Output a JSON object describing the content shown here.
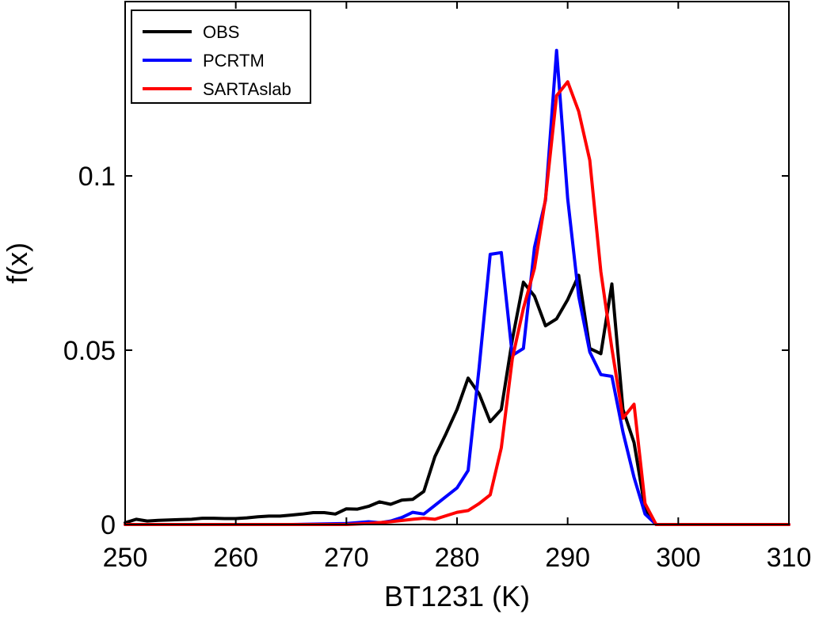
{
  "chart_data": {
    "type": "line",
    "title": "",
    "xlabel": "BT1231 (K)",
    "ylabel": "f(x)",
    "xlim": [
      250,
      310
    ],
    "ylim": [
      0,
      0.15
    ],
    "xticks": [
      250,
      260,
      270,
      280,
      290,
      300,
      310
    ],
    "xtick_labels": [
      "250",
      "260",
      "270",
      "280",
      "290",
      "300",
      "310"
    ],
    "yticks": [
      0,
      0.05,
      0.1
    ],
    "ytick_labels": [
      "0",
      "0.05",
      "0.1"
    ],
    "grid": false,
    "legend_position": "top-left",
    "series": [
      {
        "name": "OBS",
        "color": "#000000",
        "x": [
          250,
          251,
          252,
          253,
          254,
          255,
          256,
          257,
          258,
          259,
          260,
          261,
          262,
          263,
          264,
          265,
          266,
          267,
          268,
          269,
          270,
          271,
          272,
          273,
          274,
          275,
          276,
          277,
          278,
          279,
          280,
          281,
          282,
          283,
          284,
          285,
          286,
          287,
          288,
          289,
          290,
          291,
          292,
          293,
          294,
          295,
          296,
          297,
          298,
          299,
          300,
          305,
          310
        ],
        "y": [
          0.0005,
          0.0015,
          0.001,
          0.0012,
          0.0013,
          0.0014,
          0.0015,
          0.0018,
          0.0018,
          0.0017,
          0.0017,
          0.0019,
          0.0022,
          0.0024,
          0.0024,
          0.0027,
          0.003,
          0.0034,
          0.0034,
          0.003,
          0.0045,
          0.0044,
          0.0052,
          0.0065,
          0.0058,
          0.007,
          0.0072,
          0.0095,
          0.0195,
          0.026,
          0.033,
          0.042,
          0.0375,
          0.0295,
          0.033,
          0.053,
          0.0695,
          0.0655,
          0.057,
          0.059,
          0.0645,
          0.0715,
          0.0505,
          0.049,
          0.069,
          0.033,
          0.0235,
          0.0045,
          0.0,
          0.0,
          0.0,
          0.0,
          0.0
        ]
      },
      {
        "name": "PCRTM",
        "color": "#0000ff",
        "x": [
          250,
          255,
          260,
          265,
          270,
          272,
          273,
          274,
          275,
          276,
          277,
          278,
          279,
          280,
          281,
          282,
          283,
          284,
          285,
          286,
          287,
          288,
          289,
          290,
          291,
          292,
          293,
          294,
          295,
          296,
          297,
          298,
          299,
          300,
          305,
          310
        ],
        "y": [
          0.0,
          0.0,
          0.0,
          0.0,
          0.0003,
          0.0008,
          0.0005,
          0.001,
          0.002,
          0.0035,
          0.003,
          0.0055,
          0.008,
          0.0105,
          0.0155,
          0.045,
          0.0775,
          0.078,
          0.0485,
          0.0505,
          0.0795,
          0.093,
          0.136,
          0.0935,
          0.0655,
          0.0495,
          0.043,
          0.0425,
          0.0265,
          0.0135,
          0.003,
          0.0,
          0.0,
          0.0,
          0.0,
          0.0
        ]
      },
      {
        "name": "SARTAslab",
        "color": "#ff0000",
        "x": [
          250,
          255,
          260,
          265,
          270,
          272,
          274,
          276,
          277,
          278,
          279,
          280,
          281,
          282,
          283,
          284,
          285,
          286,
          287,
          288,
          289,
          290,
          291,
          292,
          293,
          294,
          295,
          296,
          297,
          298,
          299,
          300,
          305,
          310
        ],
        "y": [
          0.0,
          0.0,
          0.0,
          0.0,
          0.0,
          0.0003,
          0.0008,
          0.0015,
          0.0018,
          0.0015,
          0.0025,
          0.0035,
          0.004,
          0.006,
          0.0085,
          0.022,
          0.0475,
          0.062,
          0.0735,
          0.0935,
          0.123,
          0.127,
          0.1185,
          0.1045,
          0.0725,
          0.0505,
          0.0305,
          0.0345,
          0.006,
          0.0,
          0.0,
          0.0,
          0.0,
          0.0
        ]
      }
    ]
  }
}
